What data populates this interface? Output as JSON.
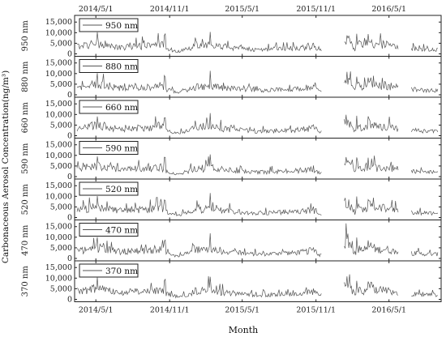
{
  "chart_data": {
    "type": "line",
    "xlabel": "Month",
    "ylabel": "Carbonaceous Aerosol Concentration(ng/m³)",
    "x_ticks": [
      "2014/5/1",
      "2014/11/1",
      "2015/5/1",
      "2015/11/1",
      "2016/5/1"
    ],
    "ylim": [
      0,
      17000
    ],
    "y_ticks": [
      "0",
      "5,000",
      "10,000",
      "15,000"
    ],
    "panels": [
      {
        "label": "950 nm",
        "wavelength": "950 nm"
      },
      {
        "label": "880 nm",
        "wavelength": "880 nm"
      },
      {
        "label": "660 nm",
        "wavelength": "660 nm"
      },
      {
        "label": "590 nm",
        "wavelength": "590 nm"
      },
      {
        "label": "520 nm",
        "wavelength": "520 nm"
      },
      {
        "label": "470 nm",
        "wavelength": "470 nm"
      },
      {
        "label": "370 nm",
        "wavelength": "370 nm"
      }
    ],
    "series_shape": {
      "anchors_x": [
        "2014-03-15",
        "2014-04-05",
        "2014-05-01",
        "2014-05-20",
        "2014-06-15",
        "2014-07-10",
        "2014-08-01",
        "2014-09-01",
        "2014-09-25",
        "2014-10-10",
        "2014-10-25",
        "2014-11-20",
        "2014-12-20",
        "2015-01-10",
        "2015-01-25",
        "2015-02-05",
        "2015-02-15",
        "2015-03-01",
        "2015-04-01",
        "2015-05-01",
        "2015-06-01",
        "2015-07-01",
        "2015-08-01",
        "2015-09-01",
        "2015-10-01",
        "2015-10-20",
        "2015-11-01",
        "2015-11-10",
        "2016-01-20",
        "2016-02-05",
        "2016-02-15",
        "2016-03-01",
        "2016-03-15",
        "2016-04-01",
        "2016-04-20",
        "2016-05-10",
        "2016-06-10",
        "2016-07-01",
        "2016-08-01",
        "2016-08-20",
        "2016-09-01"
      ],
      "anchors_y": [
        3500,
        4000,
        5000,
        4500,
        3500,
        3000,
        3800,
        3500,
        4000,
        4500,
        2500,
        1000,
        2500,
        4000,
        3500,
        5000,
        4000,
        3500,
        3000,
        2500,
        2000,
        2000,
        2500,
        2500,
        3000,
        3500,
        3000,
        1500,
        8000,
        2000,
        4500,
        3500,
        6000,
        4000,
        4500,
        3500,
        3000,
        2500,
        2000,
        2000,
        2000
      ],
      "spikes": [
        {
          "x": "2014-05-05",
          "y": 10000
        },
        {
          "x": "2014-10-20",
          "y": 9000
        },
        {
          "x": "2015-02-10",
          "y": 11500
        },
        {
          "x": "2015-10-25",
          "y": 5000
        },
        {
          "x": "2016-02-10",
          "y": 9500
        },
        {
          "x": "2016-03-10",
          "y": 9000
        }
      ],
      "gaps": [
        {
          "from": "2015-11-15",
          "to": "2016-01-10"
        },
        {
          "from": "2016-05-25",
          "to": "2016-06-25"
        }
      ]
    }
  }
}
